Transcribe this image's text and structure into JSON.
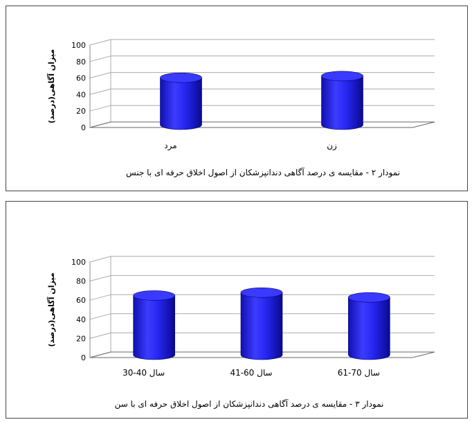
{
  "chart_data": [
    {
      "type": "bar",
      "style": "3d-cylinder",
      "categories": [
        "مرد",
        "زن"
      ],
      "values": [
        57,
        59
      ],
      "title": "نمودار ۲ - مقایسه ی درصد آگاهی دندانپزشکان از اصول اخلاق حرفه ای با جنس",
      "xlabel": "",
      "ylabel": "میزان آگاهی(درصد)",
      "ylim": [
        0,
        100
      ],
      "yticks": [
        0,
        20,
        40,
        60,
        80,
        100
      ],
      "grid": true,
      "bar_color": "#1a1ad6"
    },
    {
      "type": "bar",
      "style": "3d-cylinder",
      "categories": [
        "30-40 سال",
        "41-60 سال",
        "61-70 سال"
      ],
      "values": [
        62,
        65,
        60
      ],
      "title": "نمودار ۳ - مقایسه ی درصد آگاهی دندانپزشکان از اصول اخلاق حرفه ای با سن",
      "xlabel": "",
      "ylabel": "میزان آگاهی(درصد)",
      "ylim": [
        0,
        100
      ],
      "yticks": [
        0,
        20,
        40,
        60,
        80,
        100
      ],
      "grid": true,
      "bar_color": "#1a1ad6"
    }
  ]
}
